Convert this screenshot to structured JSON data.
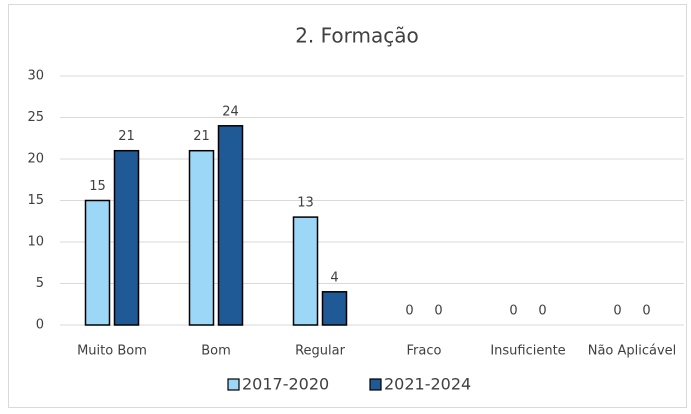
{
  "chart_data": {
    "type": "bar",
    "title": "2. Formação",
    "categories": [
      "Muito Bom",
      "Bom",
      "Regular",
      "Fraco",
      "Insuficiente",
      "Não Aplicável"
    ],
    "series": [
      {
        "name": "2017-2020",
        "color": "#9dd7f7",
        "values": [
          15,
          21,
          13,
          0,
          0,
          0
        ]
      },
      {
        "name": "2021-2024",
        "color": "#1f5a96",
        "values": [
          21,
          24,
          4,
          0,
          0,
          0
        ]
      }
    ],
    "ylim": [
      0,
      30
    ],
    "yticks": [
      0,
      5,
      10,
      15,
      20,
      25,
      30
    ],
    "grid": true,
    "legend": "bottom"
  }
}
